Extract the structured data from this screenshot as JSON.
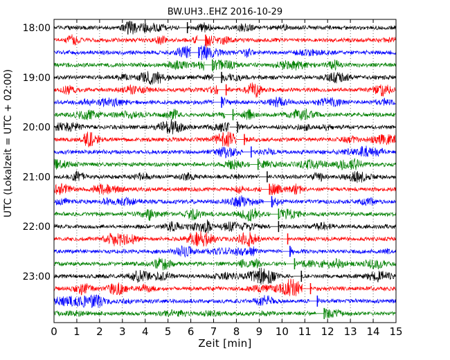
{
  "chart_data": {
    "type": "line",
    "title": "BW.UH3..EHZ 2016-10-29",
    "xlabel": "Zeit  [min]",
    "ylabel": "UTC (Lokalzeit = UTC + 02:00)",
    "xlim": [
      0,
      15
    ],
    "x_ticks": [
      "0",
      "1",
      "2",
      "3",
      "4",
      "5",
      "6",
      "7",
      "8",
      "9",
      "10",
      "11",
      "12",
      "13",
      "14",
      "15"
    ],
    "y_ticks": [
      {
        "label": "18:00",
        "row": 0
      },
      {
        "label": "19:00",
        "row": 4
      },
      {
        "label": "20:00",
        "row": 8
      },
      {
        "label": "21:00",
        "row": 12
      },
      {
        "label": "22:00",
        "row": 16
      },
      {
        "label": "23:00",
        "row": 20
      }
    ],
    "minutes_per_row": 15,
    "grid": "vertical-dotted",
    "color_cycle": [
      "#000000",
      "#ff0000",
      "#0000ff",
      "#008000"
    ],
    "rows": [
      {
        "time": "18:00",
        "color": "#000000",
        "gap_at_min": 5.5
      },
      {
        "time": "18:15",
        "color": "#ff0000",
        "gap_at_min": 6.3
      },
      {
        "time": "18:30",
        "color": "#0000ff",
        "gap_at_min": 6.0
      },
      {
        "time": "18:45",
        "color": "#008000",
        "gap_at_min": 6.6
      },
      {
        "time": "19:00",
        "color": "#000000",
        "gap_at_min": 7.0
      },
      {
        "time": "19:15",
        "color": "#ff0000",
        "gap_at_min": 7.2
      },
      {
        "time": "19:30",
        "color": "#0000ff",
        "gap_at_min": 7.0
      },
      {
        "time": "19:45",
        "color": "#008000",
        "gap_at_min": 7.5
      },
      {
        "time": "20:00",
        "color": "#000000",
        "gap_at_min": 7.7
      },
      {
        "time": "20:15",
        "color": "#ff0000",
        "gap_at_min": 8.0
      },
      {
        "time": "20:30",
        "color": "#0000ff",
        "gap_at_min": 8.3
      },
      {
        "time": "20:45",
        "color": "#008000",
        "gap_at_min": 8.6
      },
      {
        "time": "21:00",
        "color": "#000000",
        "gap_at_min": 9.0
      },
      {
        "time": "21:15",
        "color": "#ff0000",
        "gap_at_min": 9.1
      },
      {
        "time": "21:30",
        "color": "#0000ff",
        "gap_at_min": 9.2
      },
      {
        "time": "21:45",
        "color": "#008000",
        "gap_at_min": 9.5
      },
      {
        "time": "22:00",
        "color": "#000000",
        "gap_at_min": 9.5
      },
      {
        "time": "22:15",
        "color": "#ff0000",
        "gap_at_min": 9.9
      },
      {
        "time": "22:30",
        "color": "#0000ff",
        "gap_at_min": 10.0
      },
      {
        "time": "22:45",
        "color": "#008000",
        "gap_at_min": 10.2
      },
      {
        "time": "23:00",
        "color": "#000000",
        "gap_at_min": 10.5
      },
      {
        "time": "23:15",
        "color": "#ff0000",
        "gap_at_min": 10.9
      },
      {
        "time": "23:30",
        "color": "#0000ff",
        "gap_at_min": 11.2
      },
      {
        "time": "23:45",
        "color": "#008000",
        "gap_at_min": 11.5
      }
    ]
  }
}
